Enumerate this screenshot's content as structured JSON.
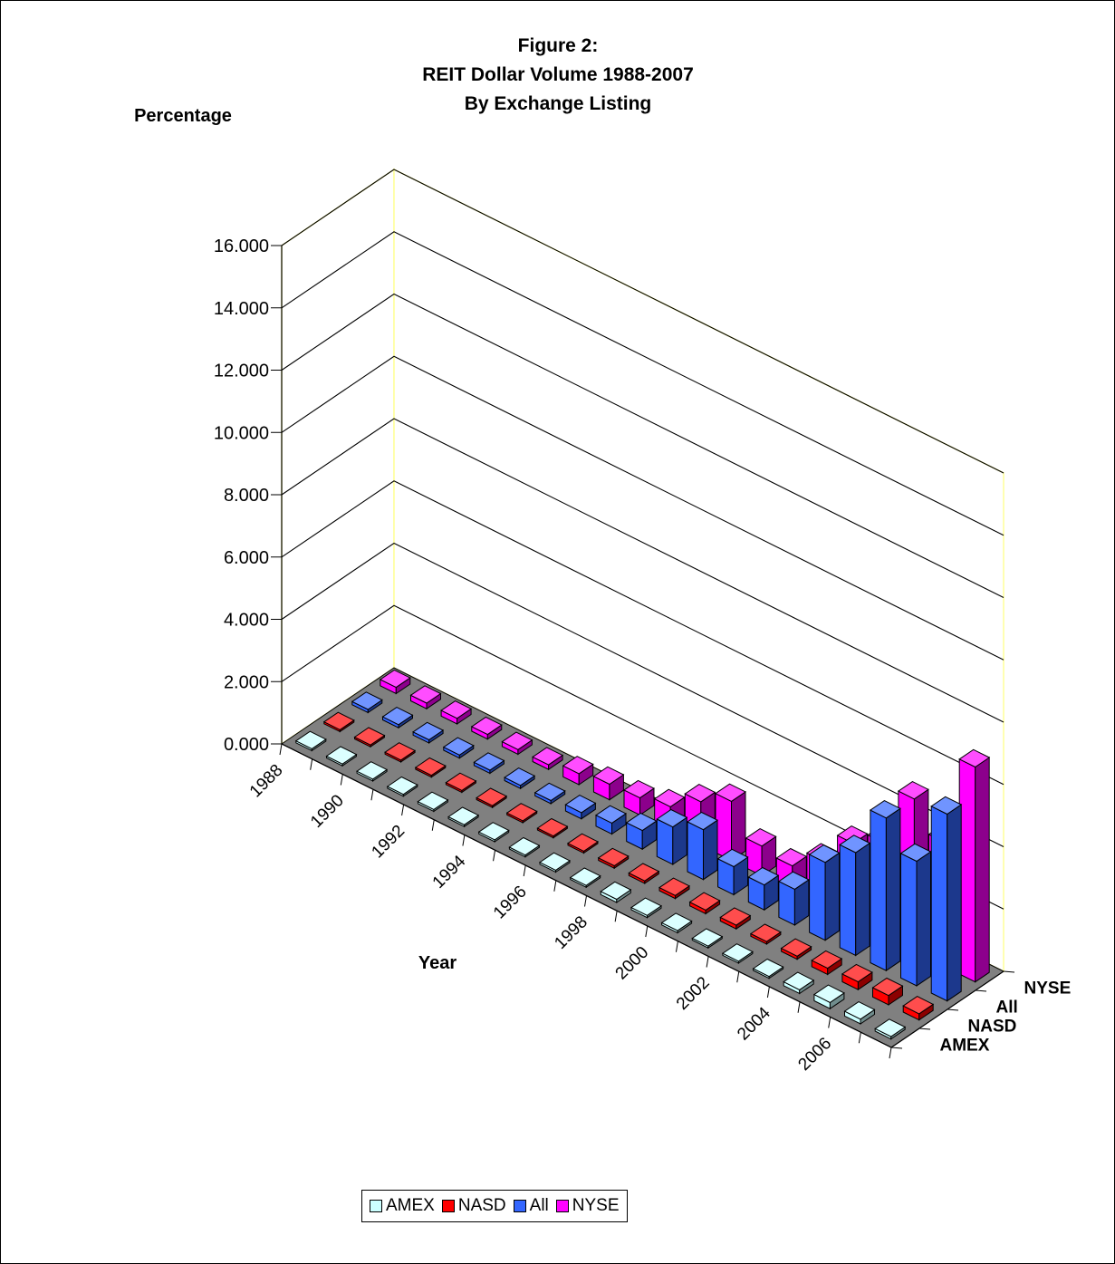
{
  "chart_data": {
    "type": "bar",
    "title_lines": [
      "Figure 2:",
      "REIT Dollar Volume 1988-2007",
      "By Exchange Listing"
    ],
    "ylabel": "Percentage",
    "xlabel": "Year",
    "ylim": [
      0,
      16
    ],
    "yticks": [
      "0.000",
      "2.000",
      "4.000",
      "6.000",
      "8.000",
      "10.000",
      "12.000",
      "14.000",
      "16.000"
    ],
    "ytick_values": [
      0,
      2,
      4,
      6,
      8,
      10,
      12,
      14,
      16
    ],
    "categories": [
      "1988",
      "1989",
      "1990",
      "1991",
      "1992",
      "1993",
      "1994",
      "1995",
      "1996",
      "1997",
      "1998",
      "1999",
      "2000",
      "2001",
      "2002",
      "2003",
      "2004",
      "2005",
      "2006",
      "2007"
    ],
    "xtick_labels": [
      "1988",
      "1990",
      "1992",
      "1994",
      "1996",
      "1998",
      "2000",
      "2002",
      "2004",
      "2006"
    ],
    "series": [
      {
        "name": "AMEX",
        "color": "#ccffff",
        "values": [
          0.02,
          0.02,
          0.02,
          0.02,
          0.02,
          0.02,
          0.02,
          0.02,
          0.03,
          0.05,
          0.1,
          0.07,
          0.07,
          0.05,
          0.05,
          0.05,
          0.12,
          0.2,
          0.15,
          0.08
        ]
      },
      {
        "name": "NASD",
        "color": "#ff0000",
        "values": [
          0.03,
          0.03,
          0.04,
          0.04,
          0.04,
          0.04,
          0.04,
          0.05,
          0.06,
          0.08,
          0.08,
          0.1,
          0.12,
          0.12,
          0.08,
          0.1,
          0.2,
          0.25,
          0.3,
          0.2
        ]
      },
      {
        "name": "All",
        "color": "#3366ff",
        "values": [
          0.1,
          0.1,
          0.1,
          0.1,
          0.1,
          0.1,
          0.1,
          0.2,
          0.35,
          0.6,
          1.2,
          1.6,
          0.9,
          0.8,
          1.15,
          2.5,
          3.3,
          4.9,
          4.0,
          6.0
        ]
      },
      {
        "name": "NYSE",
        "color": "#ff00ff",
        "values": [
          0.2,
          0.18,
          0.18,
          0.15,
          0.15,
          0.15,
          0.35,
          0.5,
          0.55,
          0.75,
          1.4,
          1.9,
          0.95,
          0.8,
          1.45,
          2.5,
          3.0,
          4.9,
          4.0,
          6.9
        ]
      }
    ],
    "legend": {
      "position": "bottom",
      "items": [
        "AMEX",
        "NASD",
        "All",
        "NYSE"
      ]
    },
    "grid": true
  }
}
